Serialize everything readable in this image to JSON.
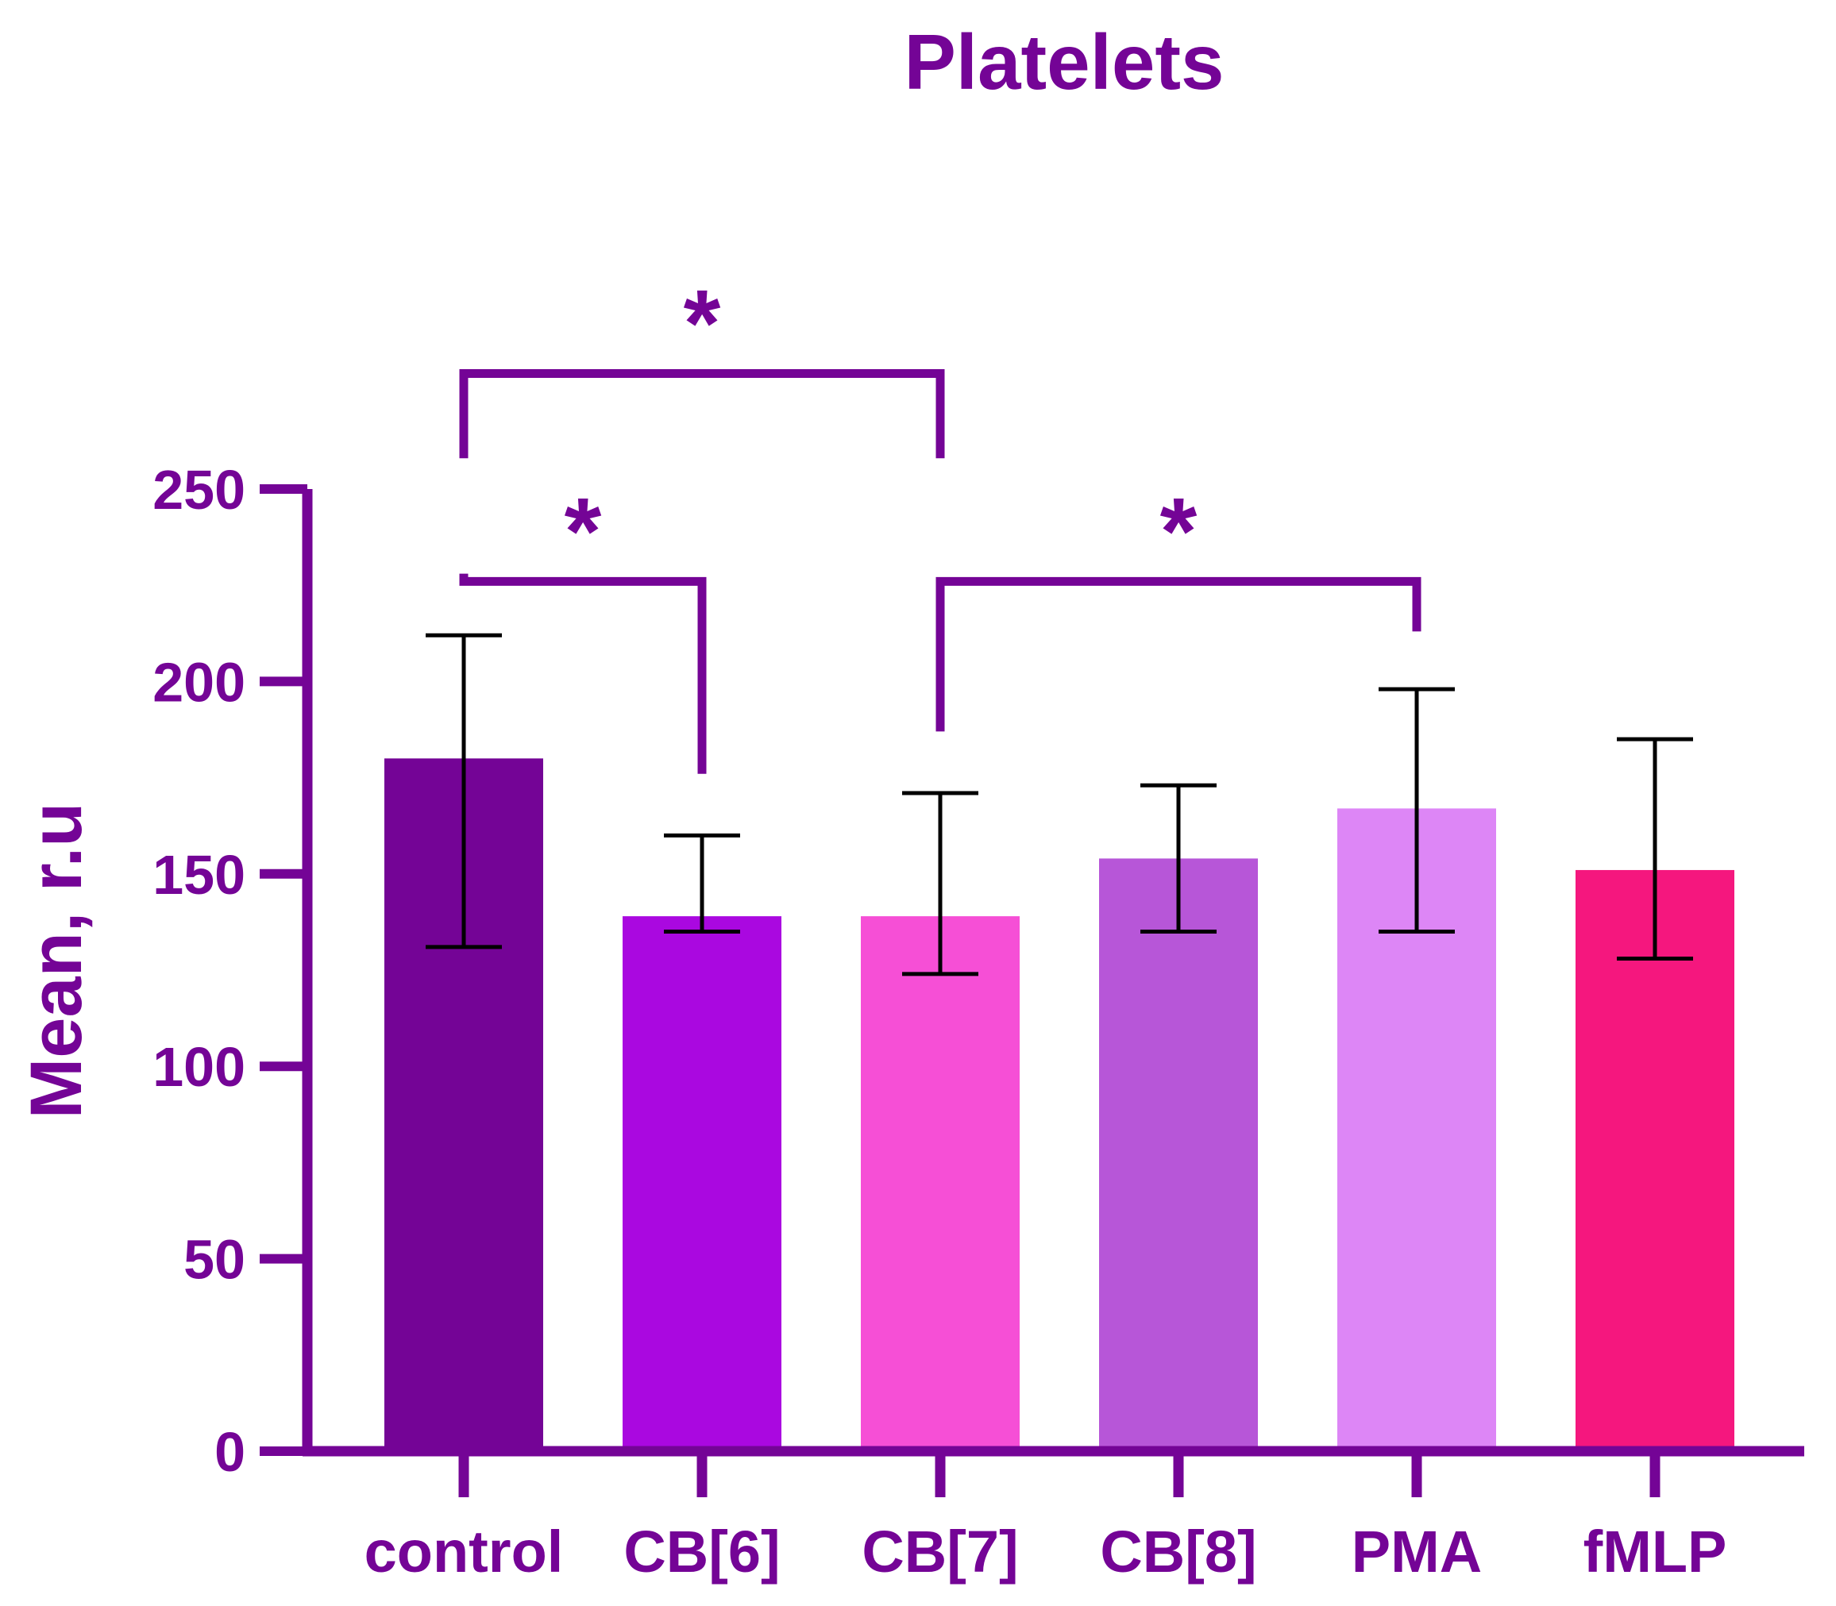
{
  "chart_data": {
    "type": "bar",
    "title": "Platelets",
    "xlabel": "",
    "ylabel": "Mean, r.u",
    "ylim": [
      0,
      250
    ],
    "yticks": [
      0,
      50,
      100,
      150,
      200,
      250
    ],
    "ytick_labels": [
      "0",
      "50",
      "100",
      "150",
      "200",
      "250"
    ],
    "categories": [
      "control",
      "CB[6]",
      "CB[7]",
      "CB[8]",
      "PMA",
      "fMLP"
    ],
    "values": [
      180,
      139,
      139,
      154,
      167,
      151
    ],
    "error_low": [
      131,
      135,
      124,
      135,
      135,
      128
    ],
    "error_high": [
      212,
      160,
      171,
      173,
      198,
      185
    ],
    "bar_colors": [
      "#740496",
      "#aa08e0",
      "#f64fd6",
      "#b756d8",
      "#dd86f6",
      "#f5177e"
    ],
    "significance": [
      {
        "from": 0,
        "to": 2,
        "label": "*",
        "bracket_level": 280,
        "left_drop": 258,
        "right_drop": 258
      },
      {
        "from": 0,
        "to": 1,
        "label": "*",
        "bracket_level": 226,
        "left_drop": 228,
        "right_drop": 176
      },
      {
        "from": 2,
        "to": 4,
        "label": "*",
        "bracket_level": 226,
        "left_drop": 187,
        "right_drop": 213
      }
    ],
    "grid": false,
    "legend": "none"
  },
  "colors": {
    "axis": "#740496",
    "text": "#740496",
    "error_bar": "#000000"
  }
}
